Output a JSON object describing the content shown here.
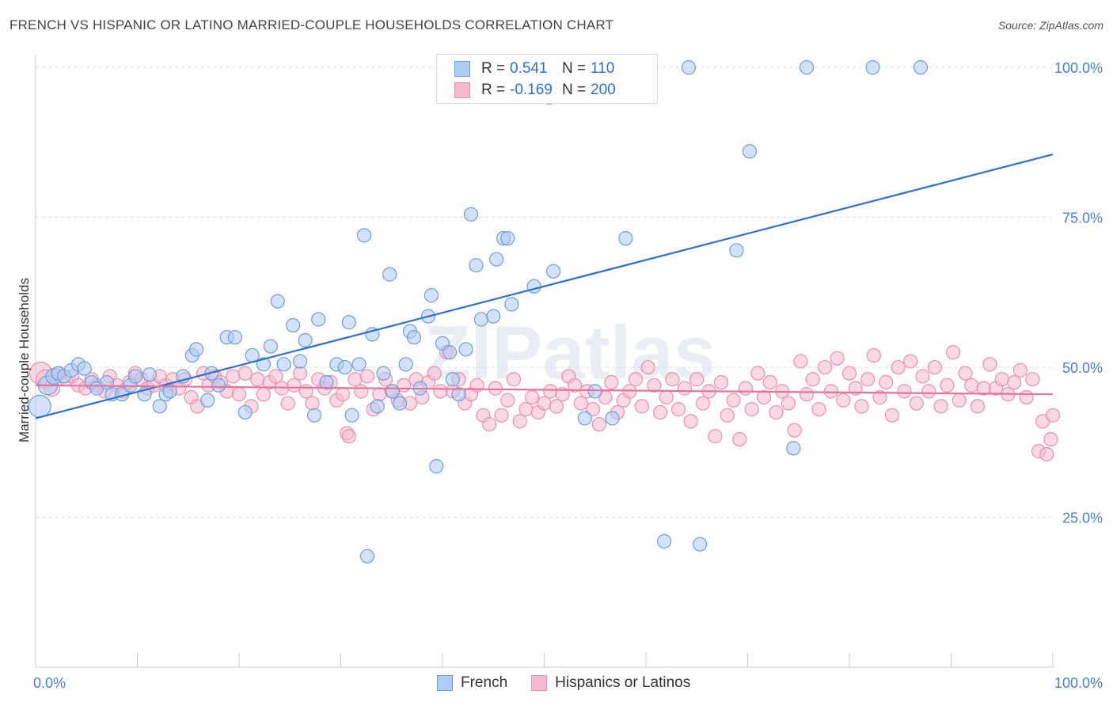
{
  "title": "FRENCH VS HISPANIC OR LATINO MARRIED-COUPLE HOUSEHOLDS CORRELATION CHART",
  "source": "Source: ZipAtlas.com",
  "watermark": "ZIPatlas",
  "colors": {
    "french_fill": "#aecbf2",
    "french_stroke": "#6d9fe0",
    "french_line": "#2f6fd0",
    "hisp_fill": "#f7b9ce",
    "hisp_stroke": "#ec8fb0",
    "hisp_line": "#e8729c",
    "axis_text": "#4a7fd0",
    "grid": "#dcdcdc"
  },
  "legend": {
    "rows": [
      {
        "r_label": "R =",
        "r_value": "0.541",
        "n_label": "N =",
        "n_value": "110"
      },
      {
        "r_label": "R =",
        "r_value": "-0.169",
        "n_label": "N =",
        "n_value": "200"
      }
    ]
  },
  "bottom_legend": {
    "series1": "French",
    "series2": "Hispanics or Latinos"
  },
  "chart_data": {
    "type": "scatter",
    "title": "FRENCH VS HISPANIC OR LATINO MARRIED-COUPLE HOUSEHOLDS CORRELATION CHART",
    "xlabel": "",
    "ylabel": "Married-couple Households",
    "xlim": [
      0,
      100
    ],
    "ylim": [
      0,
      102
    ],
    "x_tick_labels": [
      "0.0%",
      "100.0%"
    ],
    "y_ticks": [
      25,
      50,
      75,
      100
    ],
    "y_tick_labels": [
      "25.0%",
      "50.0%",
      "75.0%",
      "100.0%"
    ],
    "grid": true,
    "legend_position": "top-center",
    "series": [
      {
        "name": "French",
        "r": 0.541,
        "n": 110,
        "trend": [
          [
            0,
            41.5
          ],
          [
            100,
            85.5
          ]
        ],
        "points": [
          [
            0.4,
            43.5
          ],
          [
            1.2,
            47
          ],
          [
            1.8,
            48.5
          ],
          [
            2.2,
            49
          ],
          [
            2.8,
            48.5
          ],
          [
            3.5,
            49.5
          ],
          [
            4.2,
            50.5
          ],
          [
            4.8,
            49.8
          ],
          [
            5.5,
            47.5
          ],
          [
            6,
            46.5
          ],
          [
            7,
            47.5
          ],
          [
            7.5,
            45.5
          ],
          [
            8.5,
            45.5
          ],
          [
            9.3,
            47
          ],
          [
            9.8,
            48.5
          ],
          [
            10.7,
            45.5
          ],
          [
            11.2,
            48.8
          ],
          [
            12.2,
            43.5
          ],
          [
            12.8,
            45.5
          ],
          [
            13.2,
            46
          ],
          [
            14.5,
            48.5
          ],
          [
            15.4,
            52
          ],
          [
            15.8,
            53
          ],
          [
            16.9,
            44.5
          ],
          [
            17.3,
            49
          ],
          [
            18,
            47
          ],
          [
            18.8,
            55
          ],
          [
            19.6,
            55
          ],
          [
            20.6,
            42.5
          ],
          [
            21.3,
            52
          ],
          [
            22.4,
            50.5
          ],
          [
            23.1,
            53.5
          ],
          [
            23.8,
            61
          ],
          [
            24.4,
            50.5
          ],
          [
            25.3,
            57
          ],
          [
            26,
            51
          ],
          [
            26.5,
            54.5
          ],
          [
            27.4,
            42
          ],
          [
            27.8,
            58
          ],
          [
            28.6,
            47.5
          ],
          [
            29.6,
            50.5
          ],
          [
            30.4,
            50
          ],
          [
            30.8,
            57.5
          ],
          [
            31.1,
            42
          ],
          [
            31.8,
            50.5
          ],
          [
            32.3,
            72
          ],
          [
            32.6,
            18.5
          ],
          [
            33.1,
            55.5
          ],
          [
            33.6,
            43.5
          ],
          [
            34.2,
            49
          ],
          [
            34.8,
            65.5
          ],
          [
            35.1,
            46
          ],
          [
            35.8,
            44
          ],
          [
            36.4,
            50.5
          ],
          [
            36.8,
            56
          ],
          [
            37.2,
            55
          ],
          [
            37.8,
            46.5
          ],
          [
            38.6,
            58.5
          ],
          [
            38.9,
            62
          ],
          [
            39.4,
            33.5
          ],
          [
            40,
            54
          ],
          [
            40.7,
            52.5
          ],
          [
            41,
            48
          ],
          [
            41.6,
            45.5
          ],
          [
            42.3,
            53
          ],
          [
            42.8,
            75.5
          ],
          [
            43.3,
            67
          ],
          [
            43.8,
            58
          ],
          [
            45,
            58.5
          ],
          [
            45.3,
            68
          ],
          [
            46,
            71.5
          ],
          [
            46.4,
            71.5
          ],
          [
            46.8,
            60.5
          ],
          [
            49,
            63.5
          ],
          [
            50,
            100
          ],
          [
            50.5,
            95
          ],
          [
            50.9,
            66
          ],
          [
            53.5,
            100
          ],
          [
            54,
            41.5
          ],
          [
            55,
            46
          ],
          [
            56.7,
            41.5
          ],
          [
            58,
            71.5
          ],
          [
            60,
            100
          ],
          [
            61.8,
            21
          ],
          [
            64.2,
            100
          ],
          [
            65.3,
            20.5
          ],
          [
            68.9,
            69.5
          ],
          [
            70.2,
            86
          ],
          [
            74.5,
            36.5
          ],
          [
            75.8,
            100
          ],
          [
            82.3,
            100
          ],
          [
            87,
            100
          ]
        ]
      },
      {
        "name": "Hispanics or Latinos",
        "r": -0.169,
        "n": 200,
        "trend": [
          [
            0,
            47
          ],
          [
            100,
            45.5
          ]
        ],
        "points": [
          [
            0.5,
            49
          ],
          [
            1,
            48
          ],
          [
            1.6,
            46.5
          ],
          [
            2.3,
            49
          ],
          [
            3,
            48
          ],
          [
            3.6,
            48.5
          ],
          [
            4.2,
            47
          ],
          [
            4.9,
            46.5
          ],
          [
            5.5,
            48
          ],
          [
            6,
            47
          ],
          [
            6.8,
            46
          ],
          [
            7.3,
            48.5
          ],
          [
            8,
            47
          ],
          [
            8.6,
            46
          ],
          [
            9.2,
            47.5
          ],
          [
            9.8,
            49
          ],
          [
            10.4,
            48
          ],
          [
            11,
            46.5
          ],
          [
            11.6,
            47
          ],
          [
            12.2,
            48.5
          ],
          [
            12.8,
            47
          ],
          [
            13.5,
            48
          ],
          [
            14.1,
            46.5
          ],
          [
            14.7,
            48
          ],
          [
            15.3,
            45
          ],
          [
            15.9,
            43.5
          ],
          [
            16.5,
            49
          ],
          [
            17,
            47
          ],
          [
            17.6,
            48.5
          ],
          [
            18.2,
            47.5
          ],
          [
            18.8,
            46
          ],
          [
            19.4,
            48.5
          ],
          [
            20,
            45.5
          ],
          [
            20.6,
            49
          ],
          [
            21.2,
            43.5
          ],
          [
            21.8,
            48
          ],
          [
            22.4,
            45.5
          ],
          [
            23,
            47.5
          ],
          [
            23.6,
            48.5
          ],
          [
            24.2,
            46.5
          ],
          [
            24.8,
            44
          ],
          [
            25.4,
            47
          ],
          [
            26,
            49
          ],
          [
            26.6,
            46
          ],
          [
            27.2,
            44
          ],
          [
            27.8,
            48
          ],
          [
            28.4,
            46.5
          ],
          [
            29,
            47.5
          ],
          [
            29.6,
            44.5
          ],
          [
            30.2,
            45.5
          ],
          [
            30.6,
            39
          ],
          [
            30.8,
            38.5
          ],
          [
            31.4,
            48
          ],
          [
            32,
            46
          ],
          [
            32.6,
            48.5
          ],
          [
            33.2,
            43
          ],
          [
            33.8,
            45.5
          ],
          [
            34.4,
            48
          ],
          [
            35,
            46
          ],
          [
            35.6,
            44.5
          ],
          [
            36.2,
            47
          ],
          [
            36.8,
            44
          ],
          [
            37.4,
            48
          ],
          [
            38,
            45
          ],
          [
            38.6,
            47.5
          ],
          [
            39.2,
            49
          ],
          [
            39.8,
            46
          ],
          [
            40.4,
            52.5
          ],
          [
            41,
            46
          ],
          [
            41.6,
            48
          ],
          [
            42.2,
            44
          ],
          [
            42.8,
            45.5
          ],
          [
            43.4,
            47
          ],
          [
            44,
            42
          ],
          [
            44.6,
            40.5
          ],
          [
            45.2,
            46.5
          ],
          [
            45.8,
            42
          ],
          [
            46.4,
            44.5
          ],
          [
            47,
            48
          ],
          [
            47.6,
            41
          ],
          [
            48.2,
            43
          ],
          [
            48.8,
            45
          ],
          [
            49.4,
            42.5
          ],
          [
            50,
            44
          ],
          [
            50.6,
            46
          ],
          [
            51.2,
            43.5
          ],
          [
            51.8,
            45.5
          ],
          [
            52.4,
            48.5
          ],
          [
            53,
            47
          ],
          [
            53.6,
            44
          ],
          [
            54.2,
            46
          ],
          [
            54.8,
            43
          ],
          [
            55.4,
            40.5
          ],
          [
            56,
            45
          ],
          [
            56.6,
            47.5
          ],
          [
            57.2,
            42.5
          ],
          [
            57.8,
            44.5
          ],
          [
            58.4,
            46
          ],
          [
            59,
            48
          ],
          [
            59.6,
            43.5
          ],
          [
            60.2,
            50
          ],
          [
            60.8,
            47
          ],
          [
            61.4,
            42.5
          ],
          [
            62,
            45
          ],
          [
            62.6,
            48
          ],
          [
            63.2,
            43
          ],
          [
            63.8,
            46.5
          ],
          [
            64.4,
            41
          ],
          [
            65,
            48
          ],
          [
            65.6,
            44
          ],
          [
            66.2,
            46
          ],
          [
            66.8,
            38.5
          ],
          [
            67.4,
            47.5
          ],
          [
            68,
            42
          ],
          [
            68.6,
            44.5
          ],
          [
            69.2,
            38
          ],
          [
            69.8,
            46.5
          ],
          [
            70.4,
            43
          ],
          [
            71,
            49
          ],
          [
            71.6,
            45
          ],
          [
            72.2,
            47.5
          ],
          [
            72.8,
            42.5
          ],
          [
            73.4,
            46
          ],
          [
            74,
            44
          ],
          [
            74.6,
            39.5
          ],
          [
            75.2,
            51
          ],
          [
            75.8,
            45.5
          ],
          [
            76.4,
            48
          ],
          [
            77,
            43
          ],
          [
            77.6,
            50
          ],
          [
            78.2,
            46
          ],
          [
            78.8,
            51.5
          ],
          [
            79.4,
            44.5
          ],
          [
            80,
            49
          ],
          [
            80.6,
            46.5
          ],
          [
            81.2,
            43.5
          ],
          [
            81.8,
            48
          ],
          [
            82.4,
            52
          ],
          [
            83,
            45
          ],
          [
            83.6,
            47.5
          ],
          [
            84.2,
            42
          ],
          [
            84.8,
            50
          ],
          [
            85.4,
            46
          ],
          [
            86,
            51
          ],
          [
            86.6,
            44
          ],
          [
            87.2,
            48.5
          ],
          [
            87.8,
            46
          ],
          [
            88.4,
            50
          ],
          [
            89,
            43.5
          ],
          [
            89.6,
            47
          ],
          [
            90.2,
            52.5
          ],
          [
            90.8,
            44.5
          ],
          [
            91.4,
            49
          ],
          [
            92,
            47
          ],
          [
            92.6,
            43.5
          ],
          [
            93.2,
            46.5
          ],
          [
            93.8,
            50.5
          ],
          [
            94.4,
            46.5
          ],
          [
            95,
            48
          ],
          [
            95.6,
            45.5
          ],
          [
            96.2,
            47.5
          ],
          [
            96.8,
            49.5
          ],
          [
            97.4,
            45
          ],
          [
            98,
            48
          ],
          [
            98.6,
            36
          ],
          [
            99,
            41
          ],
          [
            99.4,
            35.5
          ],
          [
            99.8,
            38
          ],
          [
            100,
            42
          ]
        ]
      }
    ]
  }
}
